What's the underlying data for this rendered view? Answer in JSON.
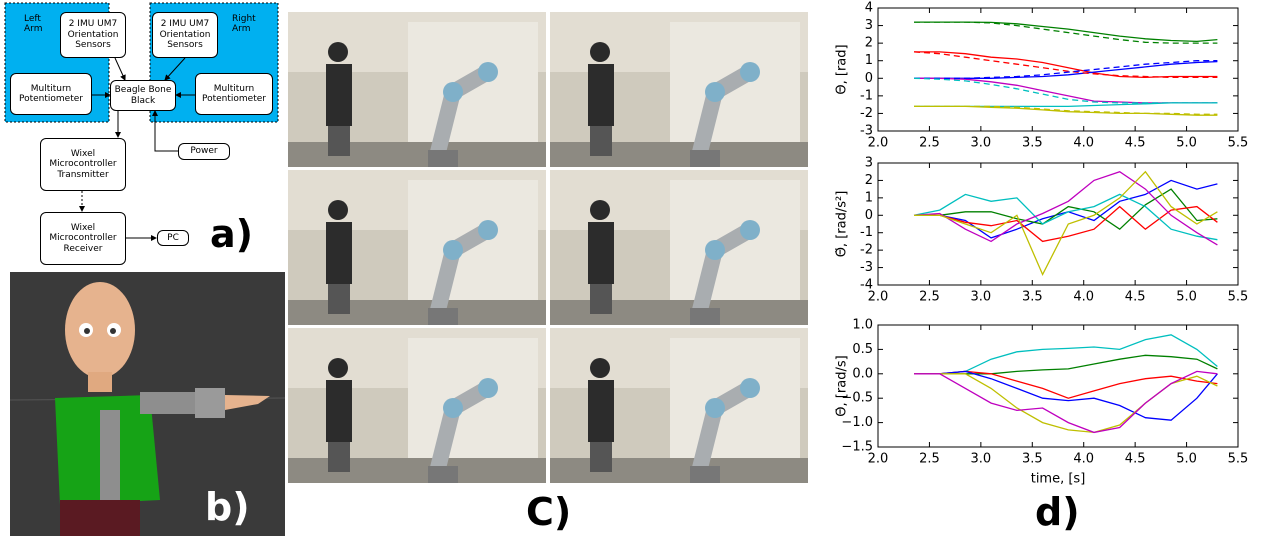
{
  "diagram": {
    "left_arm": "Left Arm",
    "right_arm": "Right Arm",
    "left_imu": "2 IMU UM7 Orientation Sensors",
    "right_imu": "2 IMU UM7 Orientation Sensors",
    "left_pot": "Multiturn Potentiometer",
    "right_pot": "Multiturn Potentiometer",
    "beagle": "Beagle Bone Black",
    "power": "Power",
    "transmitter": "Wixel Microcontroller Transmitter",
    "receiver": "Wixel Microcontroller Receiver",
    "pc": "PC"
  },
  "panels": {
    "a": "a)",
    "b": "b)",
    "c": "C)",
    "d": "d)"
  },
  "chart_data": [
    {
      "type": "line",
      "ylabel": "Θ, [rad]",
      "x": [
        2.35,
        2.6,
        2.85,
        3.1,
        3.35,
        3.6,
        3.85,
        4.1,
        4.35,
        4.6,
        4.85,
        5.1,
        5.3
      ],
      "xlim": [
        2,
        5.5
      ],
      "ylim": [
        -3,
        4
      ],
      "xticks": [
        {
          "value": 2,
          "label": "2.0"
        },
        {
          "value": 2.5,
          "label": "2.5"
        },
        {
          "value": 3,
          "label": "3.0"
        },
        {
          "value": 3.5,
          "label": "3.5"
        },
        {
          "value": 4,
          "label": "4.0"
        },
        {
          "value": 4.5,
          "label": "4.5"
        },
        {
          "value": 5,
          "label": "5.0"
        },
        {
          "value": 5.5,
          "label": "5.5"
        }
      ],
      "yticks": [
        -3,
        -2,
        -1,
        0,
        1,
        2,
        3,
        4
      ],
      "series": [
        {
          "color": "#008000",
          "values": [
            3.2,
            3.2,
            3.2,
            3.18,
            3.1,
            2.95,
            2.8,
            2.6,
            2.4,
            2.25,
            2.15,
            2.1,
            2.2
          ]
        },
        {
          "color": "#ff0000",
          "values": [
            1.5,
            1.5,
            1.4,
            1.2,
            1.1,
            0.9,
            0.6,
            0.3,
            0.1,
            0.05,
            0.1,
            0.1,
            0.1
          ]
        },
        {
          "color": "#0000ff",
          "values": [
            0,
            0,
            0,
            0,
            0.05,
            0.1,
            0.2,
            0.35,
            0.5,
            0.65,
            0.8,
            0.9,
            0.95
          ]
        },
        {
          "color": "#bf00bf",
          "values": [
            0,
            0,
            -0.05,
            -0.2,
            -0.4,
            -0.7,
            -1.0,
            -1.3,
            -1.35,
            -1.4,
            -1.4,
            -1.4,
            -1.4
          ]
        },
        {
          "color": "#00bfbf",
          "values": [
            -1.6,
            -1.6,
            -1.6,
            -1.6,
            -1.6,
            -1.6,
            -1.6,
            -1.55,
            -1.5,
            -1.45,
            -1.4,
            -1.4,
            -1.4
          ]
        },
        {
          "color": "#bfbf00",
          "values": [
            -1.6,
            -1.6,
            -1.6,
            -1.65,
            -1.7,
            -1.8,
            -1.9,
            -1.95,
            -2.0,
            -2.0,
            -2.05,
            -2.1,
            -2.1
          ]
        },
        {
          "color": "#008000",
          "style": "dashed",
          "values": [
            3.2,
            3.2,
            3.2,
            3.15,
            3.0,
            2.8,
            2.6,
            2.4,
            2.2,
            2.05,
            2.0,
            2.0,
            2.0
          ]
        },
        {
          "color": "#ff0000",
          "style": "dashed",
          "values": [
            1.5,
            1.4,
            1.2,
            1.0,
            0.8,
            0.6,
            0.4,
            0.25,
            0.15,
            0.1,
            0.05,
            0.05,
            0.05
          ]
        },
        {
          "color": "#0000ff",
          "style": "dashed",
          "values": [
            0,
            0,
            0,
            0.05,
            0.1,
            0.2,
            0.35,
            0.5,
            0.65,
            0.8,
            0.9,
            1.0,
            1.0
          ]
        },
        {
          "color": "#00bfbf",
          "style": "dashed",
          "values": [
            0,
            -0.05,
            -0.15,
            -0.35,
            -0.6,
            -0.9,
            -1.2,
            -1.35,
            -1.4,
            -1.4,
            -1.4,
            -1.4,
            -1.4
          ]
        },
        {
          "color": "#bfbf00",
          "style": "dashed",
          "values": [
            -1.6,
            -1.6,
            -1.6,
            -1.6,
            -1.65,
            -1.75,
            -1.85,
            -1.9,
            -1.95,
            -2.0,
            -2.0,
            -2.05,
            -2.05
          ]
        }
      ]
    },
    {
      "type": "line",
      "ylabel": "Θ̈, [rad/s²]",
      "x": [
        2.35,
        2.6,
        2.85,
        3.1,
        3.35,
        3.6,
        3.85,
        4.1,
        4.35,
        4.6,
        4.85,
        5.1,
        5.3
      ],
      "xlim": [
        2,
        5.5
      ],
      "ylim": [
        -4,
        3
      ],
      "xticks": [
        {
          "value": 2,
          "label": "2.0"
        },
        {
          "value": 2.5,
          "label": "2.5"
        },
        {
          "value": 3,
          "label": "3.0"
        },
        {
          "value": 3.5,
          "label": "3.5"
        },
        {
          "value": 4,
          "label": "4.0"
        },
        {
          "value": 4.5,
          "label": "4.5"
        },
        {
          "value": 5,
          "label": "5.0"
        },
        {
          "value": 5.5,
          "label": "5.5"
        }
      ],
      "yticks": [
        -4,
        -3,
        -2,
        -1,
        0,
        1,
        2,
        3
      ],
      "series": [
        {
          "color": "#0000ff",
          "values": [
            0,
            0,
            -0.3,
            -1.3,
            -0.8,
            -0.2,
            0.2,
            -0.3,
            0.8,
            1.2,
            2.0,
            1.5,
            1.8
          ]
        },
        {
          "color": "#008000",
          "values": [
            0,
            0,
            0.2,
            0.2,
            -0.2,
            -0.5,
            0.5,
            0.2,
            -0.8,
            0.6,
            1.5,
            -0.3,
            -0.2
          ]
        },
        {
          "color": "#ff0000",
          "values": [
            0,
            0,
            -0.4,
            -0.6,
            -0.3,
            -1.5,
            -1.2,
            -0.8,
            0.5,
            -0.8,
            0.3,
            0.5,
            -0.4
          ]
        },
        {
          "color": "#00bfbf",
          "values": [
            0,
            0.3,
            1.2,
            0.8,
            1.0,
            -0.5,
            0.2,
            0.5,
            1.2,
            0.5,
            -0.8,
            -1.2,
            -1.4
          ]
        },
        {
          "color": "#bf00bf",
          "values": [
            0,
            0.1,
            -0.8,
            -1.5,
            -0.5,
            0.1,
            0.8,
            2.0,
            2.5,
            1.5,
            0,
            -1,
            -1.7
          ]
        },
        {
          "color": "#bfbf00",
          "values": [
            0,
            0,
            -0.5,
            -1.0,
            0,
            -3.4,
            -0.5,
            0,
            1.0,
            2.5,
            0.5,
            -0.5,
            0.2
          ]
        }
      ]
    },
    {
      "type": "line",
      "ylabel": "Θ̇, [rad/s]",
      "xlabel": "time, [s]",
      "x": [
        2.35,
        2.6,
        2.85,
        3.1,
        3.35,
        3.6,
        3.85,
        4.1,
        4.35,
        4.6,
        4.85,
        5.1,
        5.3
      ],
      "xlim": [
        2,
        5.5
      ],
      "ylim": [
        -1.5,
        1.0
      ],
      "xticks": [
        {
          "value": 2,
          "label": "2.0"
        },
        {
          "value": 2.5,
          "label": "2.5"
        },
        {
          "value": 3,
          "label": "3.0"
        },
        {
          "value": 3.5,
          "label": "3.5"
        },
        {
          "value": 4,
          "label": "4.0"
        },
        {
          "value": 4.5,
          "label": "4.5"
        },
        {
          "value": 5,
          "label": "5.0"
        },
        {
          "value": 5.5,
          "label": "5.5"
        }
      ],
      "yticks": [
        {
          "value": -1.5,
          "label": "−1.5"
        },
        {
          "value": -1,
          "label": "−1.0"
        },
        {
          "value": -0.5,
          "label": "−0.5"
        },
        {
          "value": 0,
          "label": "0.0"
        },
        {
          "value": 0.5,
          "label": "0.5"
        },
        {
          "value": 1,
          "label": "1.0"
        }
      ],
      "series": [
        {
          "color": "#00bfbf",
          "values": [
            0,
            0,
            0.05,
            0.3,
            0.45,
            0.5,
            0.52,
            0.55,
            0.5,
            0.7,
            0.8,
            0.5,
            0.15
          ]
        },
        {
          "color": "#008000",
          "values": [
            0,
            0,
            0,
            0,
            0.05,
            0.08,
            0.1,
            0.2,
            0.3,
            0.38,
            0.35,
            0.3,
            0.1
          ]
        },
        {
          "color": "#ff0000",
          "values": [
            0,
            0,
            0.05,
            0,
            -0.15,
            -0.3,
            -0.5,
            -0.35,
            -0.2,
            -0.1,
            -0.05,
            -0.15,
            -0.2
          ]
        },
        {
          "color": "#0000ff",
          "values": [
            0,
            0,
            0.05,
            -0.1,
            -0.3,
            -0.5,
            -0.55,
            -0.5,
            -0.65,
            -0.9,
            -0.95,
            -0.5,
            0
          ]
        },
        {
          "color": "#bfbf00",
          "values": [
            0,
            0,
            0,
            -0.3,
            -0.7,
            -1.0,
            -1.15,
            -1.2,
            -1.05,
            -0.6,
            -0.2,
            -0.05,
            -0.25
          ]
        },
        {
          "color": "#bf00bf",
          "values": [
            0,
            0,
            -0.3,
            -0.6,
            -0.75,
            -0.7,
            -1.0,
            -1.2,
            -1.1,
            -0.6,
            -0.2,
            0.05,
            0
          ]
        }
      ]
    }
  ]
}
